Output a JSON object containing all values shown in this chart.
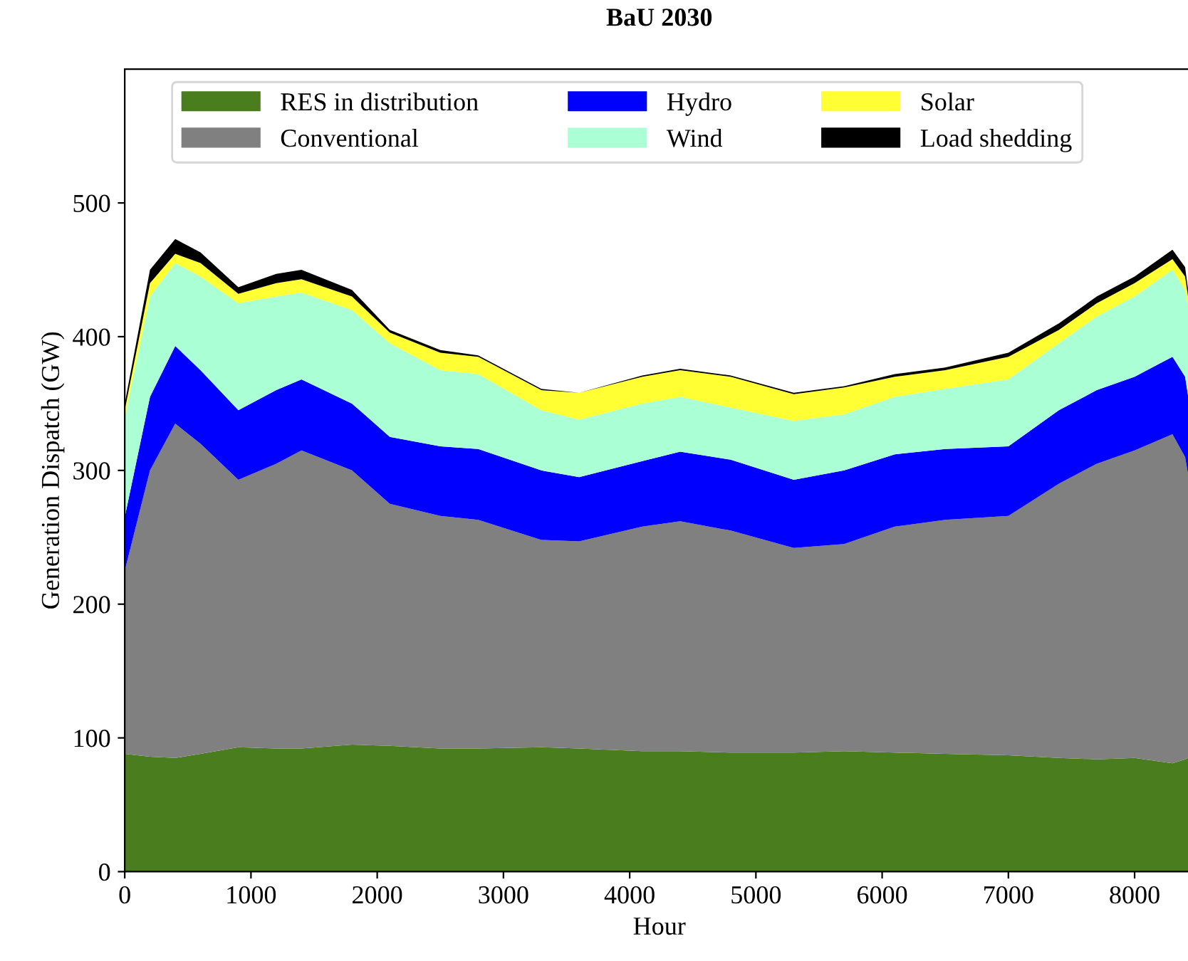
{
  "chart_data": {
    "type": "area",
    "stacked": true,
    "title": "BaU 2030",
    "xlabel": "Hour",
    "ylabel": "Generation Dispatch (GW)",
    "x": [
      0,
      200,
      400,
      600,
      900,
      1200,
      1400,
      1800,
      2100,
      2500,
      2800,
      3300,
      3600,
      4100,
      4400,
      4800,
      5300,
      5700,
      6100,
      6500,
      7000,
      7400,
      7700,
      8000,
      8300,
      8400,
      8470
    ],
    "series": [
      {
        "name": "RES in distribution",
        "color": "#4a7d1e",
        "values": [
          88,
          86,
          85,
          88,
          93,
          92,
          92,
          95,
          94,
          92,
          92,
          93,
          92,
          90,
          90,
          89,
          89,
          90,
          89,
          88,
          87,
          85,
          84,
          85,
          81,
          84,
          87
        ]
      },
      {
        "name": "Conventional",
        "color": "#808080",
        "values": [
          137,
          214,
          250,
          232,
          200,
          213,
          223,
          205,
          181,
          174,
          171,
          155,
          155,
          168,
          172,
          166,
          153,
          155,
          169,
          175,
          179,
          205,
          221,
          230,
          246,
          226,
          185
        ]
      },
      {
        "name": "Hydro",
        "color": "#0000ff",
        "values": [
          40,
          55,
          58,
          55,
          52,
          55,
          53,
          50,
          50,
          52,
          53,
          52,
          48,
          49,
          52,
          53,
          51,
          55,
          54,
          53,
          52,
          55,
          55,
          55,
          58,
          60,
          56
        ]
      },
      {
        "name": "Wind",
        "color": "#aaffd4",
        "values": [
          75,
          75,
          62,
          70,
          80,
          70,
          65,
          70,
          70,
          57,
          56,
          45,
          43,
          43,
          41,
          39,
          44,
          42,
          43,
          45,
          50,
          50,
          55,
          60,
          65,
          65,
          67
        ]
      },
      {
        "name": "Solar",
        "color": "#ffff33",
        "values": [
          5,
          10,
          7,
          10,
          7,
          10,
          10,
          10,
          8,
          13,
          13,
          15,
          20,
          20,
          20,
          23,
          20,
          20,
          15,
          14,
          17,
          10,
          10,
          10,
          8,
          10,
          5
        ]
      },
      {
        "name": "Load shedding",
        "color": "#000000",
        "values": [
          5,
          10,
          11,
          8,
          5,
          7,
          7,
          5,
          2,
          2,
          1,
          1,
          0,
          1,
          1,
          1,
          1,
          1,
          2,
          2,
          3,
          5,
          5,
          5,
          7,
          7,
          2
        ]
      }
    ],
    "xlim": [
      0,
      8470
    ],
    "xticks": [
      0,
      1000,
      2000,
      3000,
      4000,
      5000,
      6000,
      7000,
      8000
    ],
    "ylim": [
      0,
      600
    ],
    "yticks": [
      0,
      100,
      200,
      300,
      400,
      500
    ],
    "grid": false,
    "legend": "top"
  }
}
